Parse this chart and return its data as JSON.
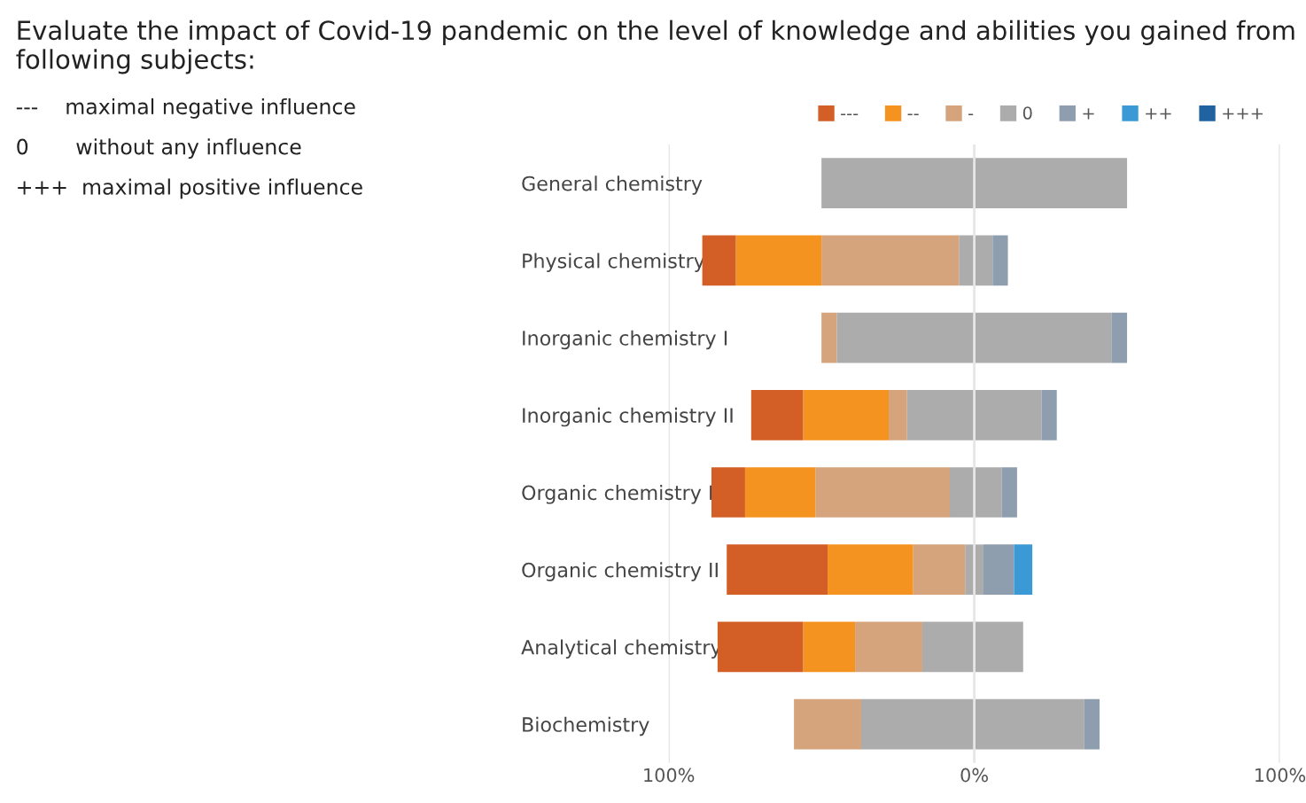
{
  "chart_data": {
    "type": "bar",
    "orientation": "horizontal",
    "stacked": true,
    "title": "Evaluate the impact of Covid-19 pandemic on the level of knowledge and abilities you gained from following subjects:",
    "annotations": [
      "---    maximal negative influence",
      "0       without any influence",
      "+++  maximal positive influence"
    ],
    "categories": [
      "General chemistry",
      "Physical chemistry",
      "Inorganic chemistry I",
      "Inorganic chemistry II",
      "Organic chemistry I",
      "Organic chemistry II",
      "Analytical chemistry",
      "Biochemistry"
    ],
    "series": [
      {
        "color": "#acacac",
        "values": [
          -50,
          -5,
          -45,
          -22,
          -8,
          -3,
          -17,
          -37
        ]
      },
      {
        "name": "-",
        "color": "#d5a47c",
        "values": [
          null,
          -45,
          -5,
          -6,
          -44,
          -17,
          -22,
          -22
        ]
      },
      {
        "name": "--",
        "color": "#f4931f",
        "values": [
          null,
          -28,
          null,
          -28,
          -23,
          -28,
          -17,
          null
        ]
      },
      {
        "name": "---",
        "color": "#d35f26",
        "values": [
          null,
          -11,
          null,
          -17,
          -11,
          -33,
          -28,
          null
        ]
      },
      {
        "name": "0",
        "color": "#acacac",
        "values": [
          50,
          6,
          45,
          22,
          9,
          3,
          16,
          36
        ]
      },
      {
        "name": "+",
        "color": "#8e9eae",
        "values": [
          null,
          5,
          5,
          5,
          5,
          10,
          null,
          5
        ]
      },
      {
        "name": "++",
        "color": "#3b9ad6",
        "values": [
          null,
          null,
          null,
          null,
          null,
          6,
          null,
          null
        ]
      },
      {
        "name": "+++",
        "color": "#2163a0",
        "values": [
          null,
          null,
          null,
          null,
          null,
          null,
          null,
          null
        ]
      }
    ],
    "xlim": [
      -100,
      100
    ],
    "xticks": [
      {
        "value": -100,
        "label": "100%"
      },
      {
        "value": 0,
        "label": "0%"
      },
      {
        "value": 100,
        "label": "100%"
      }
    ],
    "grid": "x",
    "legend": "top right"
  }
}
